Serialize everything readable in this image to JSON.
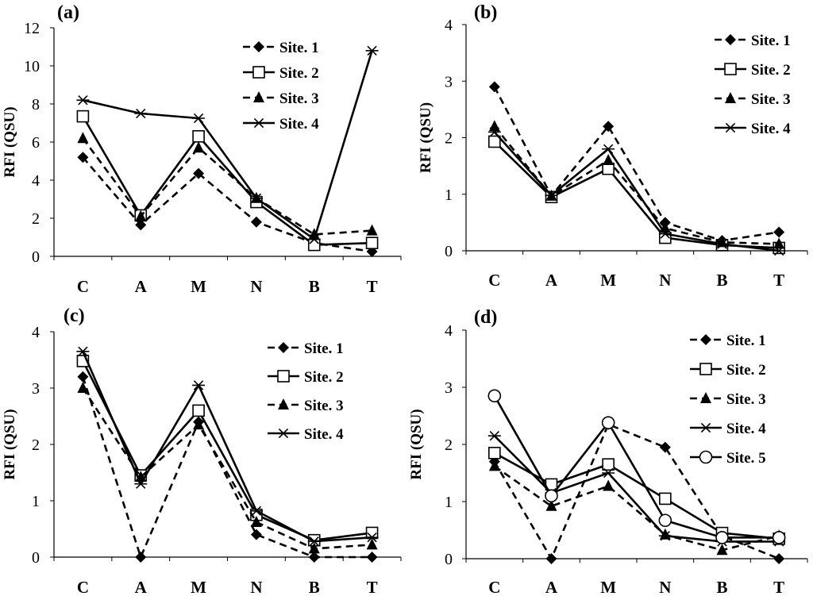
{
  "chart_data": [
    {
      "panel": "(a)",
      "type": "line",
      "categories": [
        "C",
        "A",
        "M",
        "N",
        "B",
        "T"
      ],
      "ylabel": "RFI (QSU)",
      "ylim": [
        0,
        12
      ],
      "yticks": [
        0,
        2,
        4,
        6,
        8,
        10,
        12
      ],
      "series": [
        {
          "name": "Site. 1",
          "values": [
            5.2,
            1.65,
            4.35,
            1.8,
            0.7,
            0.25
          ]
        },
        {
          "name": "Site. 2",
          "values": [
            7.35,
            2.15,
            6.3,
            2.85,
            0.6,
            0.7
          ]
        },
        {
          "name": "Site. 3",
          "values": [
            6.2,
            2.1,
            5.7,
            3.05,
            1.15,
            1.35
          ]
        },
        {
          "name": "Site. 4",
          "values": [
            8.2,
            7.5,
            7.25,
            3.05,
            0.9,
            10.8
          ]
        }
      ]
    },
    {
      "panel": "(b)",
      "type": "line",
      "categories": [
        "C",
        "A",
        "M",
        "N",
        "B",
        "T"
      ],
      "ylabel": "RFI (QSU)",
      "ylim": [
        0,
        4
      ],
      "yticks": [
        0,
        1,
        2,
        3,
        4
      ],
      "series": [
        {
          "name": "Site. 1",
          "values": [
            2.9,
            0.97,
            2.2,
            0.5,
            0.18,
            0.33
          ]
        },
        {
          "name": "Site. 2",
          "values": [
            1.93,
            0.95,
            1.45,
            0.23,
            0.1,
            0.05
          ]
        },
        {
          "name": "Site. 3",
          "values": [
            2.2,
            0.97,
            1.6,
            0.4,
            0.15,
            0.12
          ]
        },
        {
          "name": "Site. 4",
          "values": [
            2.1,
            0.98,
            1.8,
            0.3,
            0.12,
            0.0
          ]
        }
      ]
    },
    {
      "panel": "(c)",
      "type": "line",
      "categories": [
        "C",
        "A",
        "M",
        "N",
        "B",
        "T"
      ],
      "ylabel": "RFI (QSU)",
      "ylim": [
        0,
        4
      ],
      "yticks": [
        0,
        1,
        2,
        3,
        4
      ],
      "series": [
        {
          "name": "Site. 1",
          "values": [
            3.2,
            0.0,
            2.4,
            0.4,
            0.0,
            0.0
          ]
        },
        {
          "name": "Site. 2",
          "values": [
            3.48,
            1.45,
            2.6,
            0.75,
            0.3,
            0.43
          ]
        },
        {
          "name": "Site. 3",
          "values": [
            3.0,
            1.42,
            2.35,
            0.62,
            0.15,
            0.22
          ]
        },
        {
          "name": "Site. 4",
          "values": [
            3.65,
            1.3,
            3.05,
            0.82,
            0.28,
            0.35
          ]
        }
      ]
    },
    {
      "panel": "(d)",
      "type": "line",
      "categories": [
        "C",
        "A",
        "M",
        "N",
        "B",
        "T"
      ],
      "ylabel": "RFI (QSU)",
      "ylim": [
        0,
        4
      ],
      "yticks": [
        0,
        1,
        2,
        3,
        4
      ],
      "series": [
        {
          "name": "Site. 1",
          "values": [
            1.7,
            0.0,
            2.35,
            1.95,
            0.4,
            0.0
          ]
        },
        {
          "name": "Site. 2",
          "values": [
            1.85,
            1.3,
            1.65,
            1.05,
            0.45,
            0.35
          ]
        },
        {
          "name": "Site. 3",
          "values": [
            1.62,
            0.92,
            1.27,
            0.42,
            0.15,
            0.4
          ]
        },
        {
          "name": "Site. 4",
          "values": [
            2.15,
            1.15,
            1.5,
            0.4,
            0.3,
            0.3
          ]
        },
        {
          "name": "Site. 5",
          "values": [
            2.85,
            1.1,
            2.38,
            0.67,
            0.37,
            0.37
          ]
        }
      ]
    }
  ]
}
